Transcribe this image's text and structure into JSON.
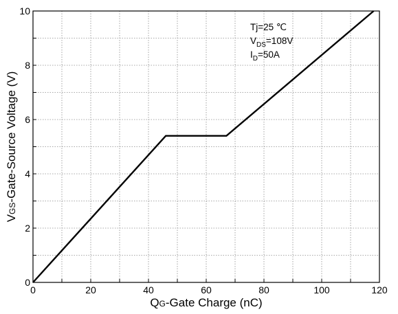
{
  "chart_data": {
    "type": "line",
    "xlabel": {
      "main": "Q",
      "sub": "G",
      "rest": "-Gate Charge (nC)"
    },
    "ylabel": {
      "main": "V",
      "sub": "GS",
      "rest": "-Gate-Source Voltage (V)"
    },
    "xlim": [
      0,
      120
    ],
    "ylim": [
      0,
      10
    ],
    "x_ticks": [
      "0",
      "20",
      "40",
      "60",
      "80",
      "100",
      "120"
    ],
    "y_ticks": [
      "0",
      "2",
      "4",
      "6",
      "8",
      "10"
    ],
    "grid": true,
    "series": [
      {
        "x": [
          0,
          46,
          67,
          118
        ],
        "y": [
          0,
          5.4,
          5.4,
          10
        ]
      }
    ],
    "annotations": [
      {
        "main": "Tj=25 ℃",
        "sub": "",
        "rest": ""
      },
      {
        "main": "V",
        "sub": "DS",
        "rest": "=108V"
      },
      {
        "main": "I",
        "sub": "D",
        "rest": "=50A"
      }
    ]
  }
}
